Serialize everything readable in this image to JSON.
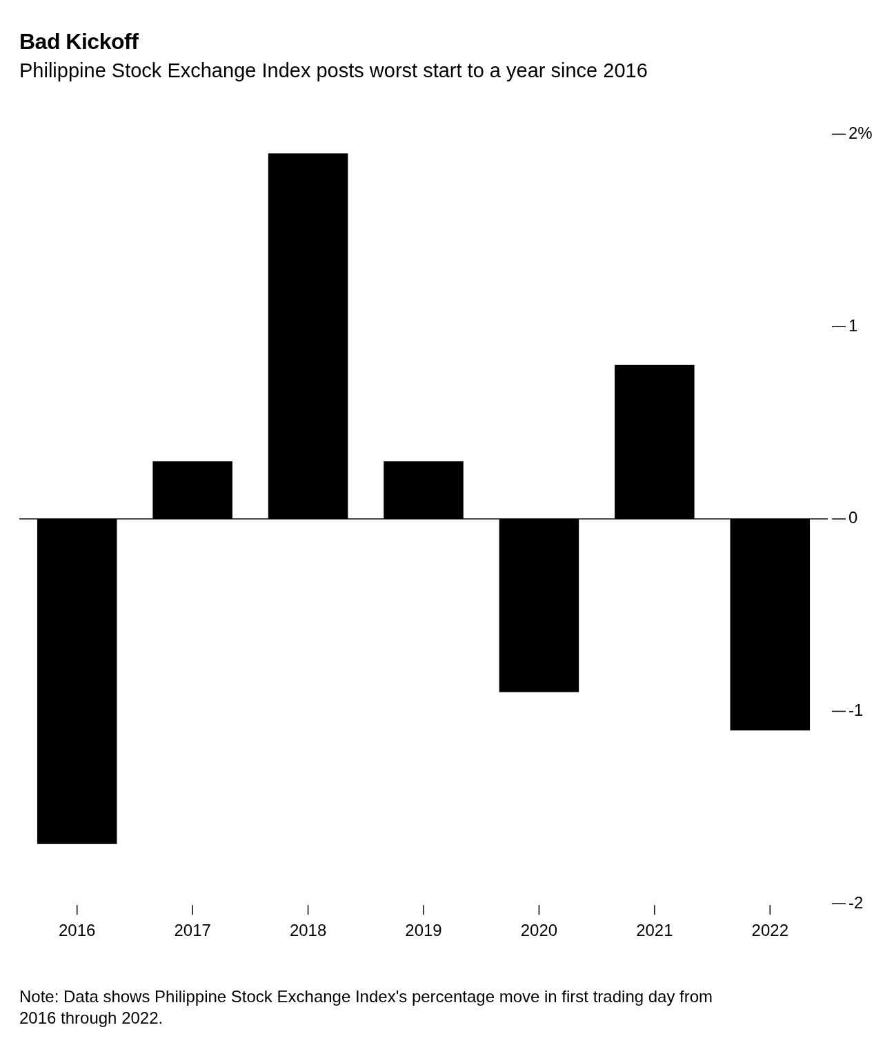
{
  "chart_data": {
    "type": "bar",
    "title": "Bad Kickoff",
    "subtitle": "Philippine Stock Exchange Index posts worst start to a year since 2016",
    "categories": [
      "2016",
      "2017",
      "2018",
      "2019",
      "2020",
      "2021",
      "2022"
    ],
    "values": [
      -1.69,
      0.3,
      1.9,
      0.3,
      -0.9,
      0.8,
      -1.1
    ],
    "color": "#000000",
    "ref_lines": [
      {
        "axis": "y",
        "value": 0,
        "color": "#000000"
      }
    ],
    "ylim": [
      -2,
      2
    ],
    "yticks": [
      {
        "value": 2,
        "label": "2%"
      },
      1,
      0,
      -1,
      -2
    ],
    "grid": false,
    "annotations": [
      "Note: Data shows Philippine Stock Exchange Index's percentage move in first trading day from 2016 through 2022."
    ]
  }
}
